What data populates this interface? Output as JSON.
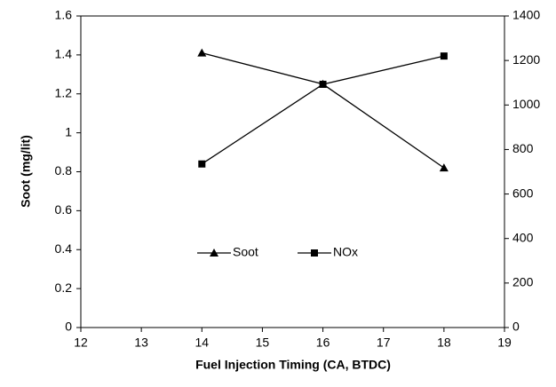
{
  "chart_data": {
    "type": "line",
    "x_label": "Fuel Injection Timing (CA, BTDC)",
    "y_label": "Soot (mg/lit)",
    "x": [
      14,
      16,
      18
    ],
    "series": [
      {
        "name": "Soot",
        "color": "#000000",
        "marker": "triangle",
        "values": [
          1.41,
          1.25,
          0.82
        ]
      },
      {
        "name": "NOx",
        "color": "#000000",
        "marker": "square",
        "axis": "y2",
        "values": [
          735,
          1093,
          1220
        ]
      }
    ],
    "xlim": [
      12,
      19
    ],
    "xticks": [
      12,
      13,
      14,
      15,
      16,
      17,
      18,
      19
    ],
    "ylim": [
      0,
      1.6
    ],
    "yticks": [
      0,
      0.2,
      0.4,
      0.6,
      0.8,
      1,
      1.2,
      1.4,
      1.6
    ],
    "y2lim": [
      0,
      1400
    ],
    "y2ticks": [
      0,
      200,
      400,
      600,
      800,
      1000,
      1200,
      1400
    ],
    "grid": false
  }
}
